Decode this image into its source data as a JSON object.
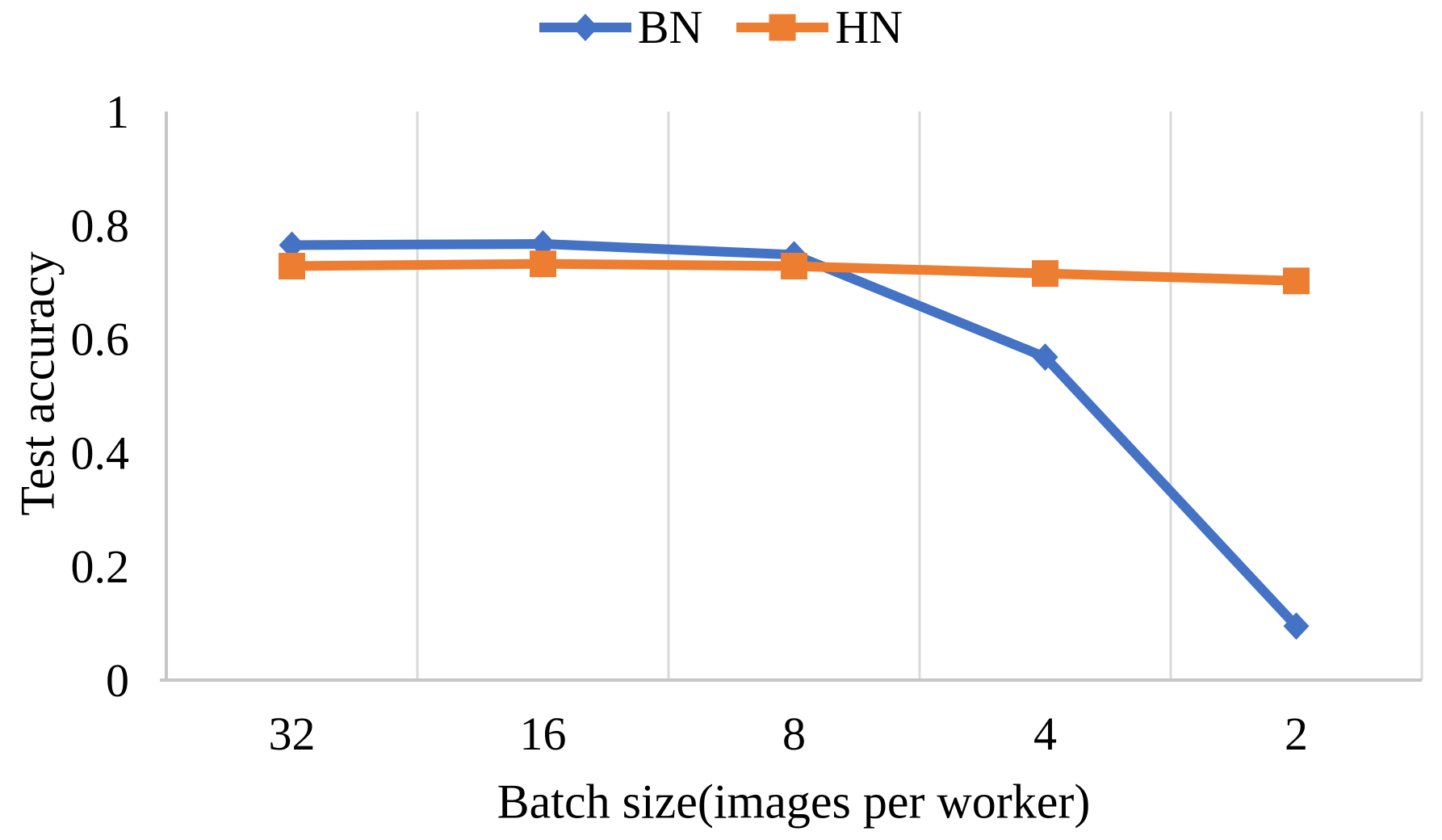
{
  "chart_data": {
    "type": "line",
    "xlabel": "Batch size(images per worker)",
    "ylabel": "Test accuracy",
    "categories": [
      "32",
      "16",
      "8",
      "4",
      "2"
    ],
    "series": [
      {
        "name": "BN",
        "color": "#4472C4",
        "marker": "diamond",
        "values": [
          0.765,
          0.767,
          0.748,
          0.568,
          0.095
        ]
      },
      {
        "name": "HN",
        "color": "#ED7D31",
        "marker": "square",
        "values": [
          0.728,
          0.732,
          0.728,
          0.715,
          0.702
        ]
      }
    ],
    "ylim": [
      0,
      1
    ],
    "yticks": [
      0,
      0.2,
      0.4,
      0.6,
      0.8,
      1
    ],
    "ytick_labels": [
      "0",
      "0.2",
      "0.4",
      "0.6",
      "0.8",
      "1"
    ],
    "grid": "vertical-only",
    "legend_position": "top-center",
    "gridline_color": "#D9D9D9",
    "axis_color": "#C6C6C6",
    "text_color": "#000000",
    "background_color": "#FFFFFF"
  }
}
